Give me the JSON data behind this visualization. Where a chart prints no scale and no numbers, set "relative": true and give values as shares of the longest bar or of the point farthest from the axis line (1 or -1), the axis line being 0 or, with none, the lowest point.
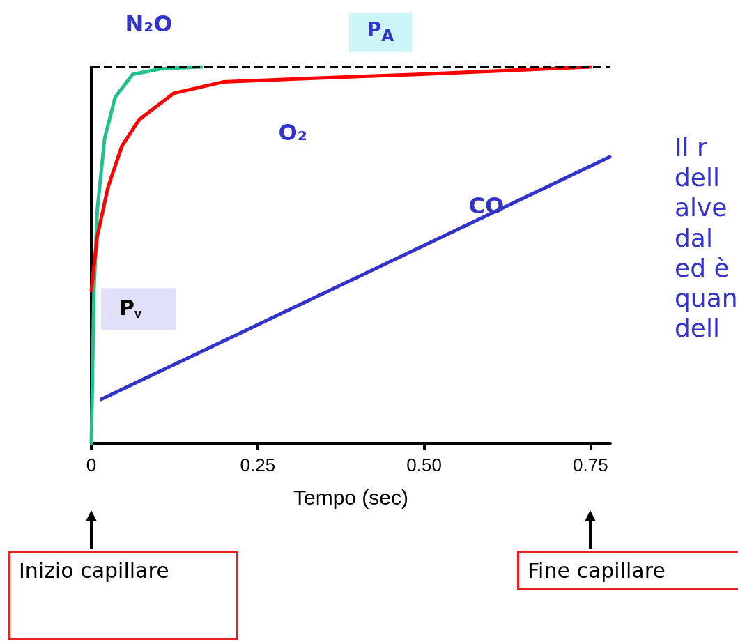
{
  "chart_data": {
    "type": "line",
    "relative": true,
    "xlabel": "Tempo (sec)",
    "xlim": [
      0,
      0.78
    ],
    "xticks": [
      0,
      {
        "value": 0.25,
        "label": "0.25"
      },
      {
        "value": 0.5,
        "label": "0.50"
      },
      {
        "value": 0.75,
        "label": "0.75"
      }
    ],
    "series": [
      {
        "name": "N₂O",
        "color": "#20c090",
        "x": [
          0,
          0.004,
          0.009,
          0.02,
          0.036,
          0.062,
          0.104,
          0.166
        ],
        "values": [
          0,
          0.405,
          0.62,
          0.81,
          0.92,
          0.98,
          0.995,
          1.0
        ]
      },
      {
        "name": "O₂",
        "color": "#ff0000",
        "x": [
          0,
          0.009,
          0.025,
          0.046,
          0.072,
          0.124,
          0.198,
          0.334,
          0.49,
          0.75
        ],
        "values": [
          0.405,
          0.55,
          0.68,
          0.79,
          0.86,
          0.93,
          0.96,
          0.97,
          0.98,
          1.0
        ]
      },
      {
        "name": "CO",
        "color": "#3333cc",
        "x": [
          0.015,
          0.779
        ],
        "values": [
          0.117,
          0.761
        ]
      }
    ],
    "ref_lines": [
      {
        "axis": "y",
        "value": 1,
        "label": "P$_{A}$",
        "line_style": "dashed",
        "color": "#000000"
      }
    ],
    "annotations": [
      {
        "text": "P$_{v}$",
        "x": 0,
        "y": 0.405
      },
      "Inizio capillare",
      "Fine capillare",
      "Il r\ndell\nalve\ndal\ned è\nquan\ndell"
    ],
    "legend": false,
    "grid": false,
    "marker": "none",
    "line_style": "solid"
  }
}
